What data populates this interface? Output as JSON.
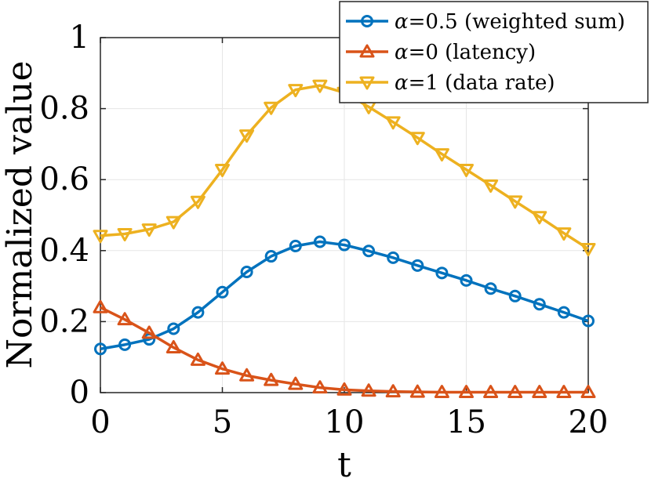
{
  "chart_data": {
    "type": "line",
    "title": "",
    "xlabel": "t",
    "ylabel": "Normalized value",
    "xlim": [
      0,
      20
    ],
    "ylim": [
      0,
      1
    ],
    "grid": true,
    "legend_position": "top-right",
    "x_ticks": [
      0,
      5,
      10,
      15,
      20
    ],
    "x_tick_labels": [
      "0",
      "5",
      "10",
      "15",
      "20"
    ],
    "y_ticks": [
      0,
      0.2,
      0.4,
      0.6,
      0.8,
      1
    ],
    "y_tick_labels": [
      "0",
      "0.2",
      "0.4",
      "0.6",
      "0.8",
      "1"
    ],
    "x": [
      0,
      1,
      2,
      3,
      4,
      5,
      6,
      7,
      8,
      9,
      10,
      11,
      12,
      13,
      14,
      15,
      16,
      17,
      18,
      19,
      20
    ],
    "series": [
      {
        "name": "α=0.5 (weighted sum)",
        "symbol": "α",
        "label_rest": "=0.5 (weighted sum)",
        "color": "#0072BD",
        "marker": "circle",
        "values": [
          0.123,
          0.135,
          0.15,
          0.18,
          0.226,
          0.283,
          0.34,
          0.384,
          0.413,
          0.425,
          0.416,
          0.399,
          0.38,
          0.358,
          0.337,
          0.316,
          0.293,
          0.272,
          0.249,
          0.226,
          0.202
        ]
      },
      {
        "name": "α=0 (latency)",
        "symbol": "α",
        "label_rest": "=0 (latency)",
        "color": "#D95319",
        "marker": "triangle-up",
        "values": [
          0.24,
          0.206,
          0.168,
          0.127,
          0.092,
          0.067,
          0.048,
          0.035,
          0.024,
          0.014,
          0.008,
          0.005,
          0.003,
          0.002,
          0.001,
          0.001,
          0.001,
          0.001,
          0.001,
          0.001,
          0.001
        ]
      },
      {
        "name": "α=1 (data rate)",
        "symbol": "α",
        "label_rest": "=1 (data rate)",
        "color": "#EDB120",
        "marker": "triangle-down",
        "values": [
          0.442,
          0.447,
          0.46,
          0.481,
          0.538,
          0.628,
          0.725,
          0.803,
          0.853,
          0.865,
          0.845,
          0.805,
          0.762,
          0.718,
          0.672,
          0.628,
          0.584,
          0.539,
          0.495,
          0.449,
          0.405
        ]
      }
    ]
  }
}
